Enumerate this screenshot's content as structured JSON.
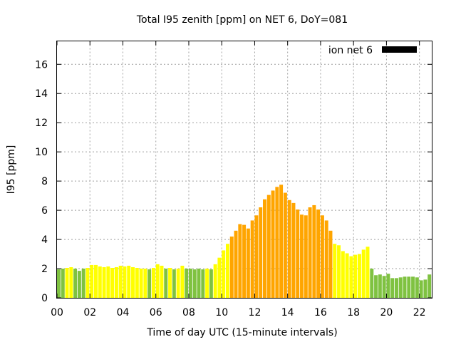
{
  "chart_data": {
    "type": "bar",
    "title": "Total I95 zenith [ppm] on NET 6, DoY=081",
    "xlabel": "Time of day UTC (15-minute intervals)",
    "ylabel": "I95 [ppm]",
    "xlim": [
      0,
      22.75
    ],
    "ylim": [
      0,
      17.6
    ],
    "xticks": [
      "00",
      "02",
      "04",
      "06",
      "08",
      "10",
      "12",
      "14",
      "16",
      "18",
      "20",
      "22"
    ],
    "xtick_values": [
      0,
      2,
      4,
      6,
      8,
      10,
      12,
      14,
      16,
      18,
      20,
      22
    ],
    "yticks": [
      "0",
      "2",
      "4",
      "6",
      "8",
      "10",
      "12",
      "14",
      "16"
    ],
    "ytick_values": [
      0,
      2,
      4,
      6,
      8,
      10,
      12,
      14,
      16
    ],
    "grid": true,
    "legend": {
      "label": "ion net 6",
      "color": "#000000",
      "position": "top-right"
    },
    "interval_hours": 0.25,
    "level_colors": {
      "green": "#7fc241",
      "yellow": "#ffff00",
      "orange": "#ffa500"
    },
    "values": [
      1.95,
      2.0,
      2.05,
      2.1,
      2.0,
      1.85,
      2.0,
      2.05,
      2.25,
      2.25,
      2.15,
      2.1,
      2.15,
      2.05,
      2.1,
      2.2,
      2.15,
      2.2,
      2.1,
      2.05,
      2.0,
      2.0,
      1.95,
      2.05,
      2.3,
      2.2,
      2.0,
      2.05,
      1.95,
      2.0,
      2.2,
      2.0,
      2.0,
      1.95,
      2.0,
      1.95,
      2.0,
      1.95,
      2.3,
      2.75,
      3.25,
      3.7,
      4.2,
      4.6,
      5.05,
      5.0,
      4.75,
      5.3,
      5.65,
      6.2,
      6.75,
      7.05,
      7.35,
      7.6,
      7.75,
      7.2,
      6.7,
      6.5,
      6.05,
      5.7,
      5.65,
      6.2,
      6.35,
      6.05,
      5.65,
      5.3,
      4.6,
      3.7,
      3.6,
      3.2,
      3.05,
      2.85,
      2.95,
      3.0,
      3.3,
      3.5,
      2.0,
      1.55,
      1.6,
      1.5,
      1.65,
      1.35,
      1.35,
      1.4,
      1.45,
      1.45,
      1.45,
      1.4,
      1.2,
      1.25,
      1.6
    ],
    "levels": [
      "green",
      "green",
      "yellow",
      "yellow",
      "green",
      "green",
      "green",
      "yellow",
      "yellow",
      "yellow",
      "yellow",
      "yellow",
      "yellow",
      "yellow",
      "yellow",
      "yellow",
      "yellow",
      "yellow",
      "yellow",
      "yellow",
      "yellow",
      "yellow",
      "green",
      "yellow",
      "yellow",
      "yellow",
      "green",
      "yellow",
      "green",
      "yellow",
      "yellow",
      "green",
      "green",
      "green",
      "green",
      "green",
      "yellow",
      "green",
      "yellow",
      "yellow",
      "yellow",
      "yellow",
      "orange",
      "orange",
      "orange",
      "orange",
      "orange",
      "orange",
      "orange",
      "orange",
      "orange",
      "orange",
      "orange",
      "orange",
      "orange",
      "orange",
      "orange",
      "orange",
      "orange",
      "orange",
      "orange",
      "orange",
      "orange",
      "orange",
      "orange",
      "orange",
      "orange",
      "yellow",
      "yellow",
      "yellow",
      "yellow",
      "yellow",
      "yellow",
      "yellow",
      "yellow",
      "yellow",
      "green",
      "green",
      "green",
      "green",
      "green",
      "green",
      "green",
      "green",
      "green",
      "green",
      "green",
      "green",
      "green",
      "green",
      "green"
    ]
  }
}
